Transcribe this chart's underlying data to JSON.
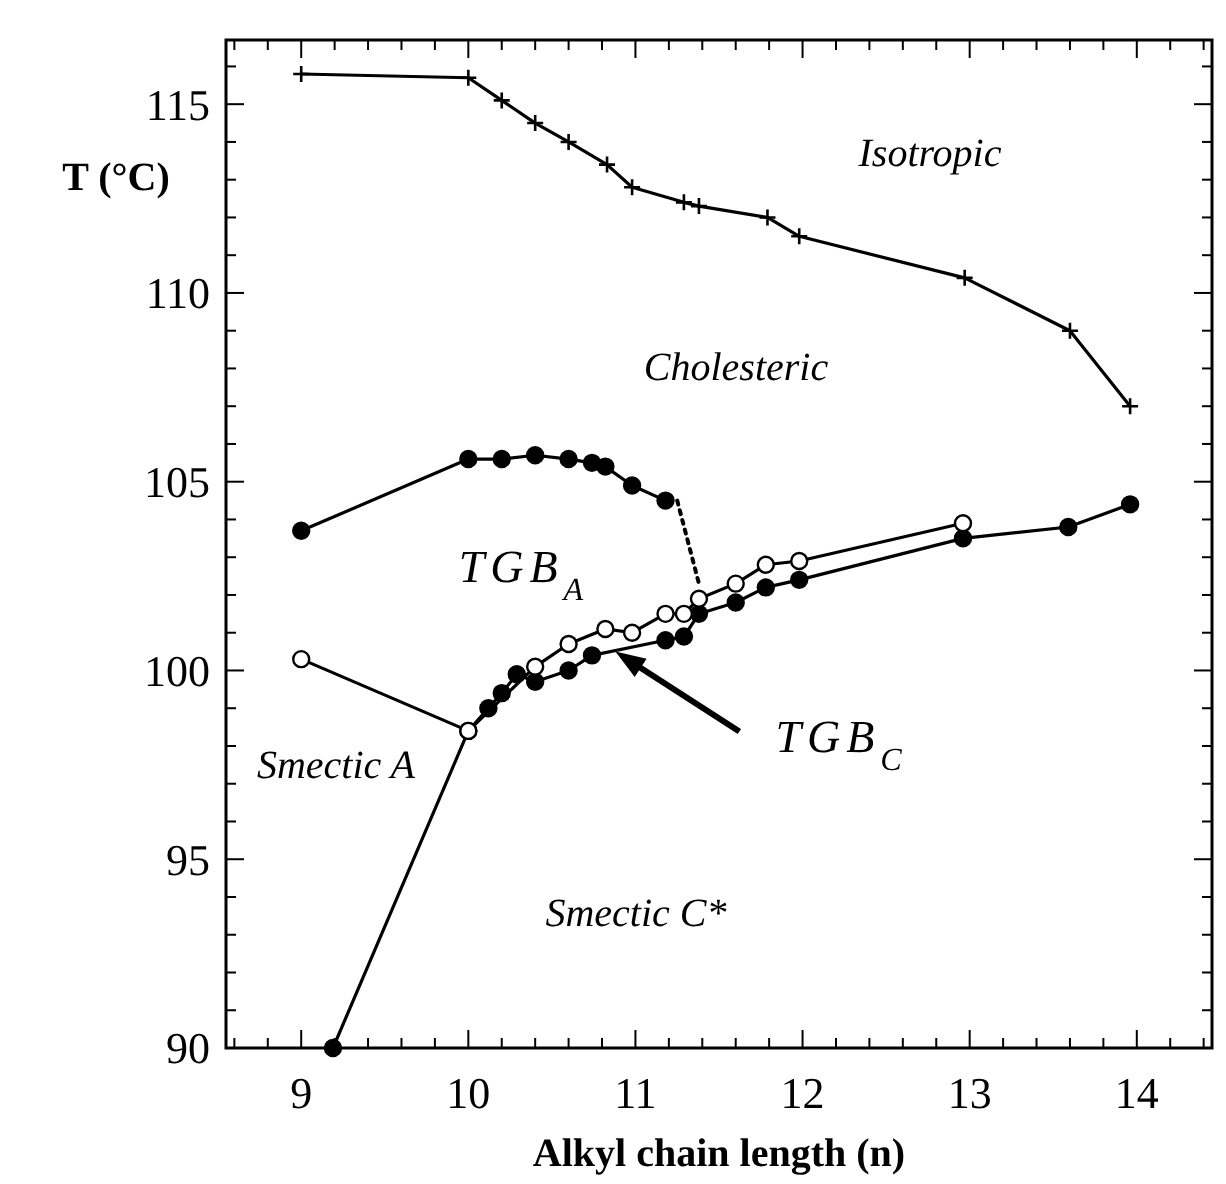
{
  "chart_data": {
    "type": "line",
    "xlabel": "Alkyl chain length (n)",
    "ylabel": "T (°C)",
    "xlim": [
      8.55,
      14.45
    ],
    "ylim": [
      90,
      116.7
    ],
    "xticks": [
      9,
      10,
      11,
      12,
      13,
      14,
      {
        "value": 8.6,
        "label": null
      },
      {
        "value": 8.8,
        "label": null
      },
      {
        "value": 9.2,
        "label": null
      },
      {
        "value": 9.4,
        "label": null
      },
      {
        "value": 9.6,
        "label": null
      },
      {
        "value": 9.8,
        "label": null
      },
      {
        "value": 10.2,
        "label": null
      },
      {
        "value": 10.4,
        "label": null
      },
      {
        "value": 10.6,
        "label": null
      },
      {
        "value": 10.8,
        "label": null
      },
      {
        "value": 11.2,
        "label": null
      },
      {
        "value": 11.4,
        "label": null
      },
      {
        "value": 11.6,
        "label": null
      },
      {
        "value": 11.8,
        "label": null
      },
      {
        "value": 12.2,
        "label": null
      },
      {
        "value": 12.4,
        "label": null
      },
      {
        "value": 12.6,
        "label": null
      },
      {
        "value": 12.8,
        "label": null
      },
      {
        "value": 13.2,
        "label": null
      },
      {
        "value": 13.4,
        "label": null
      },
      {
        "value": 13.6,
        "label": null
      },
      {
        "value": 13.8,
        "label": null
      },
      {
        "value": 14.2,
        "label": null
      },
      {
        "value": 14.4,
        "label": null
      }
    ],
    "yticks": [
      90,
      95,
      100,
      105,
      110,
      115,
      {
        "value": 91,
        "label": null
      },
      {
        "value": 92,
        "label": null
      },
      {
        "value": 93,
        "label": null
      },
      {
        "value": 94,
        "label": null
      },
      {
        "value": 96,
        "label": null
      },
      {
        "value": 97,
        "label": null
      },
      {
        "value": 98,
        "label": null
      },
      {
        "value": 99,
        "label": null
      },
      {
        "value": 101,
        "label": null
      },
      {
        "value": 102,
        "label": null
      },
      {
        "value": 103,
        "label": null
      },
      {
        "value": 104,
        "label": null
      },
      {
        "value": 106,
        "label": null
      },
      {
        "value": 107,
        "label": null
      },
      {
        "value": 108,
        "label": null
      },
      {
        "value": 109,
        "label": null
      },
      {
        "value": 111,
        "label": null
      },
      {
        "value": 112,
        "label": null
      },
      {
        "value": 113,
        "label": null
      },
      {
        "value": 114,
        "label": null
      },
      {
        "value": 116,
        "label": null
      }
    ],
    "grid": false,
    "series": [
      {
        "color": "#000000",
        "marker": "cross",
        "x": [
          9,
          10,
          10.2,
          10.4,
          10.6,
          10.83,
          10.98,
          11.29,
          11.38,
          11.79,
          11.98,
          12.97,
          13.6,
          13.96
        ],
        "values": [
          115.8,
          115.7,
          115.1,
          114.5,
          114.0,
          113.4,
          112.8,
          112.4,
          112.3,
          112.0,
          111.5,
          110.4,
          109.0,
          107.0
        ]
      },
      {
        "color": "#000000",
        "marker": "circle",
        "x": [
          9,
          10,
          10.2,
          10.4,
          10.6,
          10.74,
          10.82,
          10.98,
          11.18
        ],
        "values": [
          103.7,
          105.6,
          105.6,
          105.7,
          105.6,
          105.5,
          105.4,
          104.9,
          104.5
        ]
      },
      {
        "color": "#000000",
        "marker": "none",
        "line_style": "dotted",
        "x": [
          11.25,
          11.38
        ],
        "values": [
          104.5,
          102.3
        ]
      },
      {
        "color": "#000000",
        "marker": "circle",
        "x": [
          9.19,
          10,
          10.12,
          10.2,
          10.29,
          10.4,
          10.6,
          10.74,
          11.18,
          11.29,
          11.38,
          11.6,
          11.78,
          11.98,
          12.96,
          13.59,
          13.96
        ],
        "values": [
          90,
          98.4,
          99.0,
          99.4,
          99.9,
          99.7,
          100.0,
          100.4,
          100.8,
          100.9,
          101.5,
          101.8,
          102.2,
          102.4,
          103.5,
          103.8,
          104.4
        ]
      },
      {
        "color": "#ffffff",
        "marker": "circle",
        "x": [
          9,
          10,
          10.4,
          10.6,
          10.82,
          10.98,
          11.18,
          11.29,
          11.38,
          11.6,
          11.78,
          11.98,
          12.96
        ],
        "values": [
          100.3,
          98.4,
          100.1,
          100.7,
          101.1,
          101.0,
          101.5,
          101.5,
          101.9,
          102.3,
          102.8,
          102.9,
          103.9
        ]
      }
    ],
    "annotations": [
      "Isotropic",
      "Cholesteric",
      "TGB$_{A}$",
      "Smectic A",
      "Smectic C*",
      {
        "text": "TGB$_{C}$",
        "x": 10.88,
        "y": 100.5
      }
    ]
  }
}
